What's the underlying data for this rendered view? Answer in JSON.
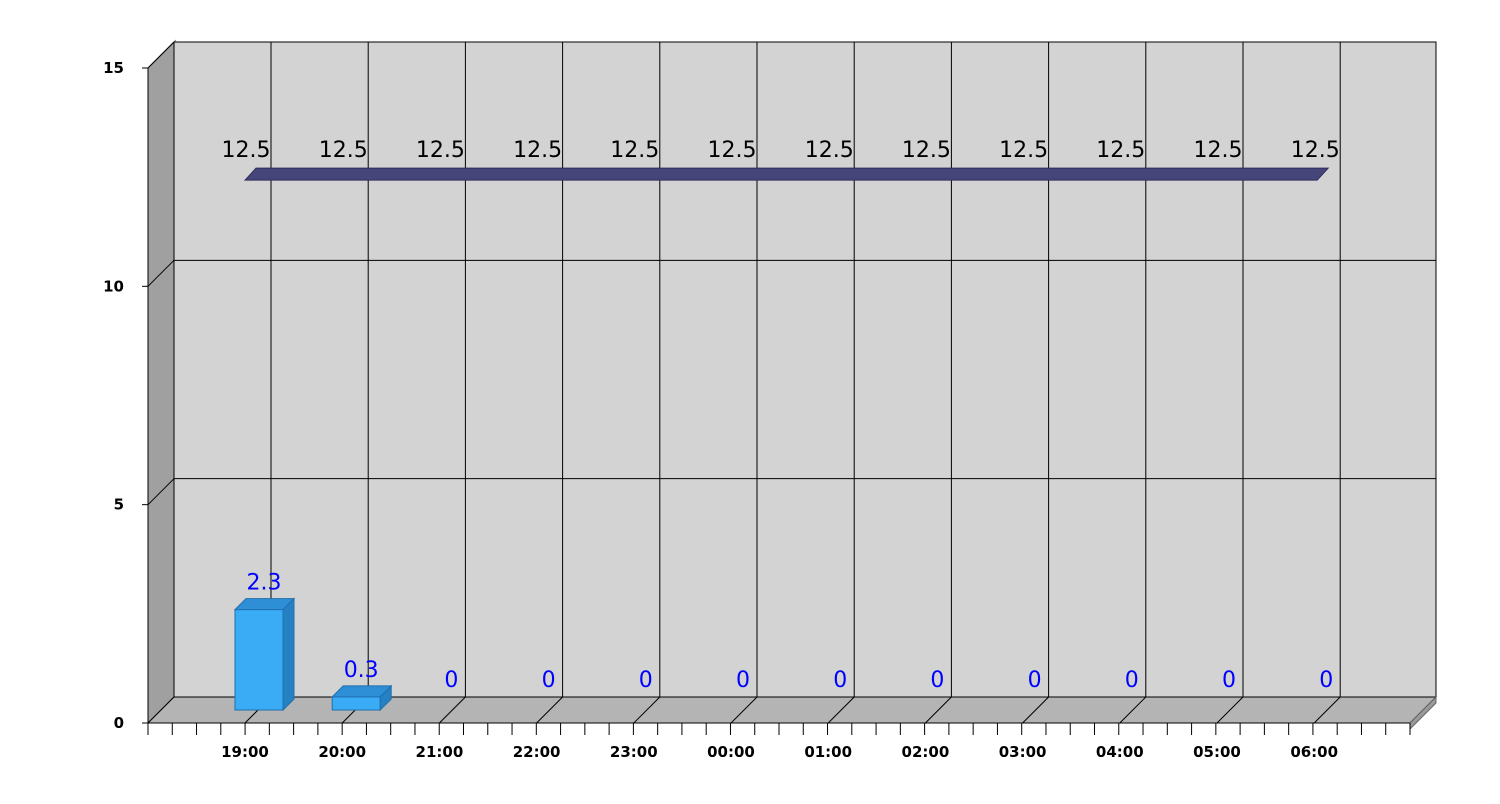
{
  "chart_data": {
    "type": "bar",
    "categories": [
      "19:00",
      "20:00",
      "21:00",
      "22:00",
      "23:00",
      "00:00",
      "01:00",
      "02:00",
      "03:00",
      "04:00",
      "05:00",
      "06:00"
    ],
    "series": [
      {
        "kind": "bar",
        "values": [
          2.3,
          0.3,
          0,
          0,
          0,
          0,
          0,
          0,
          0,
          0,
          0,
          0
        ]
      },
      {
        "kind": "line",
        "values": [
          12.5,
          12.5,
          12.5,
          12.5,
          12.5,
          12.5,
          12.5,
          12.5,
          12.5,
          12.5,
          12.5,
          12.5
        ]
      }
    ],
    "yticks": [
      0,
      5,
      10,
      15
    ],
    "ylim": [
      0,
      15
    ],
    "grid": true,
    "legend": "none",
    "style": "3d",
    "colors": {
      "bar": "#3aacf5",
      "bar_label": "#0000ff",
      "line": "#45457a",
      "line_label": "#000000",
      "plot_background": "#d3d3d3",
      "side_wall": "#a0a0a0",
      "floor": "#b4b4b4"
    }
  }
}
